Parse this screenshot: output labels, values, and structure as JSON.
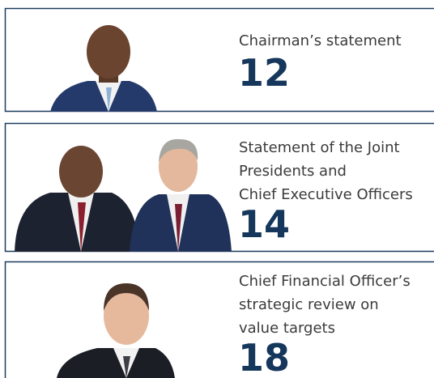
{
  "cards": [
    {
      "title_lines": [
        "Chairman’s statement"
      ],
      "page": 12
    },
    {
      "title_lines": [
        "Statement of the Joint",
        "Presidents and",
        "Chief Executive Officers"
      ],
      "page": 14
    },
    {
      "title_lines": [
        "Chief Financial Officer’s",
        "strategic review on",
        "value targets"
      ],
      "page": 18
    }
  ]
}
